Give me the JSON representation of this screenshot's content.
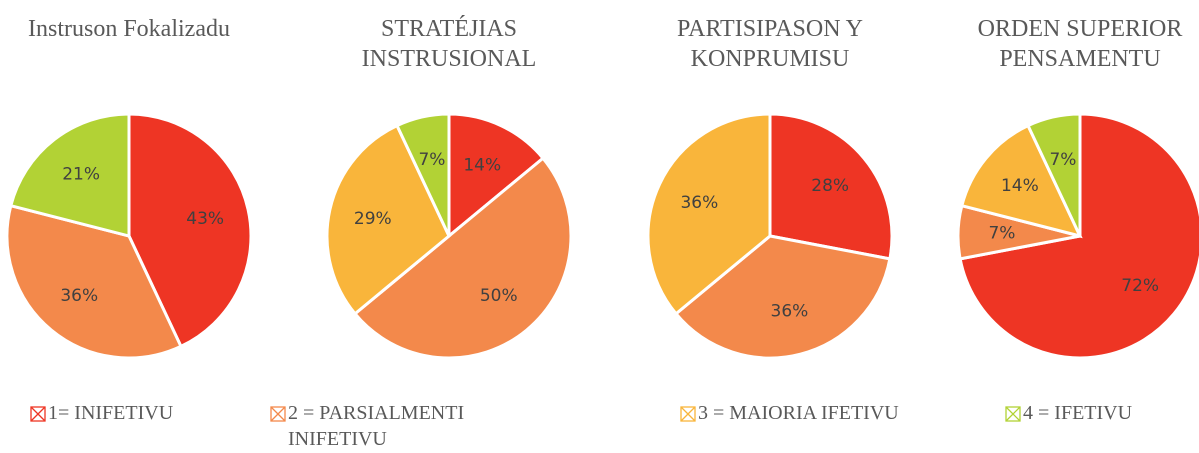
{
  "chart_data": [
    {
      "type": "pie",
      "title": "Instruson Fokalizadu",
      "values": [
        43,
        36,
        21
      ],
      "value_labels": [
        "43%",
        "36%",
        "21%"
      ],
      "colors": [
        "#ee3524",
        "#f3894b",
        "#b2d235"
      ]
    },
    {
      "type": "pie",
      "title": "STRATÉJIAS INSTRUSIONAL",
      "values": [
        14,
        50,
        29,
        7
      ],
      "value_labels": [
        "14%",
        "50%",
        "29%",
        "7%"
      ],
      "colors": [
        "#ee3524",
        "#f3894b",
        "#f9b53b",
        "#b2d235"
      ]
    },
    {
      "type": "pie",
      "title": "PARTISIPASON Y KONPRUMISU",
      "values": [
        28,
        36,
        36
      ],
      "value_labels": [
        "28%",
        "36%",
        "36%"
      ],
      "colors": [
        "#ee3524",
        "#f3894b",
        "#f9b53b"
      ]
    },
    {
      "type": "pie",
      "title": "ORDEN SUPERIOR PENSAMENTU",
      "values": [
        72,
        7,
        14,
        7
      ],
      "value_labels": [
        "72%",
        "7%",
        "14%",
        "7%"
      ],
      "colors": [
        "#ee3524",
        "#f3894b",
        "#f9b53b",
        "#b2d235"
      ]
    }
  ],
  "legend": {
    "items": [
      {
        "name": "1= INIFETIVU",
        "color": "#ee3524"
      },
      {
        "name": "2 = PARSIALMENTI INIFETIVU",
        "color": "#f3894b"
      },
      {
        "name": "3 = MAIORIA IFETIVU",
        "color": "#f9b53b"
      },
      {
        "name": "4 = IFETIVU",
        "color": "#b2d235"
      }
    ]
  }
}
